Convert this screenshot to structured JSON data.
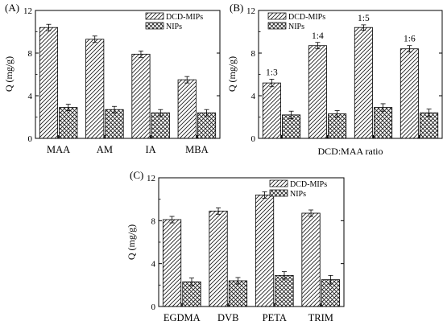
{
  "figure": {
    "panels": [
      "(A)",
      "(B)",
      "(C)"
    ]
  },
  "chart_data": [
    {
      "type": "bar",
      "panel": "(A)",
      "categories": [
        "MAA",
        "AM",
        "IA",
        "MBA"
      ],
      "series": [
        {
          "name": "DCD-MIPs",
          "values": [
            10.4,
            9.3,
            7.9,
            5.5
          ],
          "errors": [
            0.3,
            0.3,
            0.3,
            0.3
          ],
          "hatch": "diagonal"
        },
        {
          "name": "NIPs",
          "values": [
            2.9,
            2.7,
            2.4,
            2.4
          ],
          "errors": [
            0.3,
            0.3,
            0.3,
            0.3
          ],
          "hatch": "crosshatch"
        }
      ],
      "ylabel": "Q (mg/g)",
      "xlabel": "",
      "ylim": [
        0,
        12
      ],
      "yticks": [
        0,
        4,
        8,
        12
      ],
      "legend": "top-right"
    },
    {
      "type": "bar",
      "panel": "(B)",
      "categories": [
        "1:3",
        "1:4",
        "1:5",
        "1:6"
      ],
      "series": [
        {
          "name": "DCD-MIPs",
          "values": [
            5.2,
            8.7,
            10.4,
            8.4
          ],
          "errors": [
            0.35,
            0.3,
            0.25,
            0.3
          ],
          "hatch": "diagonal"
        },
        {
          "name": "NIPs",
          "values": [
            2.2,
            2.3,
            2.9,
            2.4
          ],
          "errors": [
            0.35,
            0.3,
            0.35,
            0.35
          ],
          "hatch": "crosshatch"
        }
      ],
      "ylabel": "Q (mg/g)",
      "xlabel": "DCD:MAA ratio",
      "ylim": [
        0,
        12
      ],
      "yticks": [
        0,
        4,
        8,
        12
      ],
      "legend": "top-left"
    },
    {
      "type": "bar",
      "panel": "(C)",
      "categories": [
        "EGDMA",
        "DVB",
        "PETA",
        "TRIM"
      ],
      "series": [
        {
          "name": "DCD-MIPs",
          "values": [
            8.1,
            8.9,
            10.4,
            8.7
          ],
          "errors": [
            0.3,
            0.3,
            0.3,
            0.3
          ],
          "hatch": "diagonal"
        },
        {
          "name": "NIPs",
          "values": [
            2.3,
            2.4,
            2.9,
            2.5
          ],
          "errors": [
            0.35,
            0.3,
            0.35,
            0.4
          ],
          "hatch": "crosshatch"
        }
      ],
      "ylabel": "Q (mg/g)",
      "xlabel": "",
      "ylim": [
        0,
        12
      ],
      "yticks": [
        0,
        4,
        8,
        12
      ],
      "legend": "top-right"
    }
  ]
}
